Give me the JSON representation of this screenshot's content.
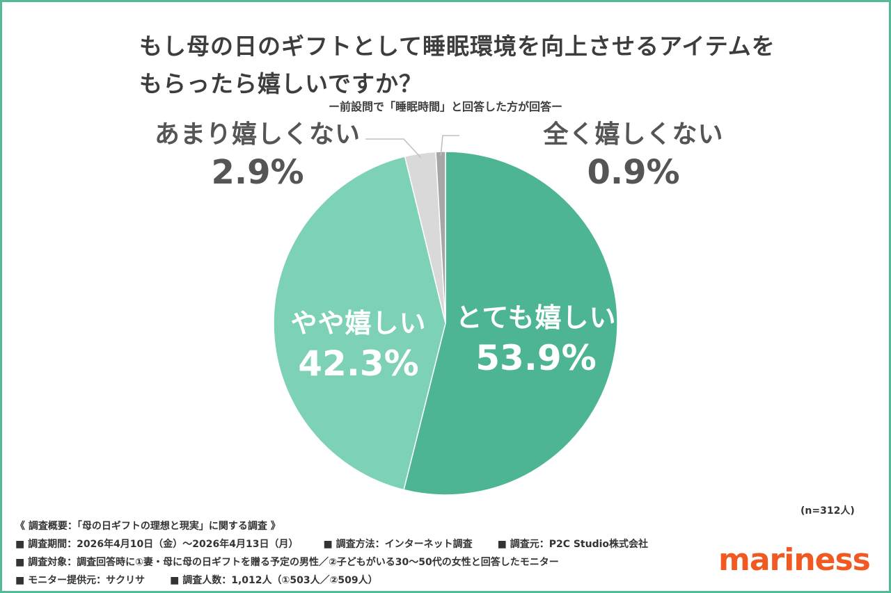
{
  "title": {
    "line1": "もし母の日のギフトとして睡眠環境を向上させるアイテムを",
    "line2": "もらったら嬉しいですか？"
  },
  "subtitle": "ー前設問で「睡眠時間」と回答した方が回答ー",
  "chart_data": {
    "type": "pie",
    "title": "もし母の日のギフトとして睡眠環境を向上させるアイテムをもらったら嬉しいですか？",
    "categories": [
      "とても嬉しい",
      "やや嬉しい",
      "あまり嬉しくない",
      "全く嬉しくない"
    ],
    "values": [
      53.9,
      42.3,
      2.9,
      0.9
    ],
    "value_labels": [
      "53.9%",
      "42.3%",
      "2.9%",
      "0.9%"
    ],
    "colors": [
      "#4db594",
      "#7dd1b6",
      "#d9d9d9",
      "#a6a6a6"
    ],
    "start": "top",
    "direction": "clockwise"
  },
  "n_note": "(n=312人)",
  "notes": {
    "heading": "《 調査概要：「母の日ギフトの理想と現実」に関する調査 》",
    "period": "■ 調査期間：2026年4月10日（金）〜2026年4月13日（月）",
    "method": "■ 調査方法：インターネット調査",
    "source": "■ 調査元：P2C Studio株式会社",
    "target": "■ 調査対象：調査回答時に①妻・母に母の日ギフトを贈る予定の男性／②子どもがいる30〜50代の女性と回答したモニター",
    "provider": "■ モニター提供元：サクリサ",
    "count": "■ 調査人数：1,012人（①503人／②509人）"
  },
  "logo": "mariness"
}
